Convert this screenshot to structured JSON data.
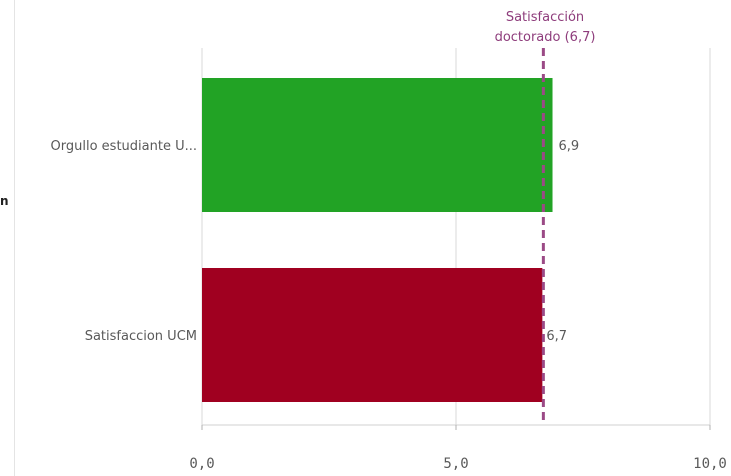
{
  "sidebar_fragment": "n",
  "chart_data": {
    "type": "bar",
    "orientation": "horizontal",
    "categories": [
      "Orgullo estudiante U...",
      "Satisfaccion UCM"
    ],
    "values": [
      6.9,
      6.7
    ],
    "value_labels": [
      "6,9",
      "6,7"
    ],
    "colors": [
      "#22a325",
      "#a00020"
    ],
    "xlim": [
      0,
      10
    ],
    "xticks": [
      0,
      5,
      10
    ],
    "xtick_labels": [
      "0,0",
      "5,0",
      "10,0"
    ],
    "grid": true,
    "reference_line": {
      "value": 6.7,
      "label_line1": "Satisfacción",
      "label_line2": "doctorado (6,7)",
      "color": "#9b4a86",
      "style": "dashed"
    }
  }
}
